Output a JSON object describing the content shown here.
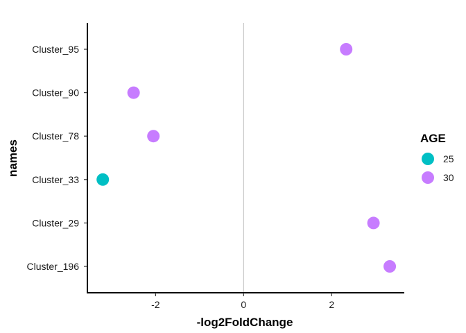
{
  "chart_data": {
    "type": "scatter",
    "title": "",
    "xlabel": "-log2FoldChange",
    "ylabel": "names",
    "categories": [
      "Cluster_196",
      "Cluster_29",
      "Cluster_33",
      "Cluster_78",
      "Cluster_90",
      "Cluster_95"
    ],
    "xlim": [
      -3.55,
      3.65
    ],
    "xticks": [
      -2,
      0,
      2
    ],
    "vline_at": 0,
    "grid": false,
    "legend": {
      "title": "AGE",
      "placement": "right",
      "entries": [
        {
          "label": "25",
          "color": "#00BFC4"
        },
        {
          "label": "30",
          "color": "#C77CFF"
        }
      ]
    },
    "points": [
      {
        "name": "Cluster_95",
        "x": 2.33,
        "age": "30"
      },
      {
        "name": "Cluster_90",
        "x": -2.5,
        "age": "30"
      },
      {
        "name": "Cluster_78",
        "x": -2.05,
        "age": "30"
      },
      {
        "name": "Cluster_33",
        "x": -3.2,
        "age": "25"
      },
      {
        "name": "Cluster_29",
        "x": 2.95,
        "age": "30"
      },
      {
        "name": "Cluster_196",
        "x": 3.32,
        "age": "30"
      }
    ]
  }
}
